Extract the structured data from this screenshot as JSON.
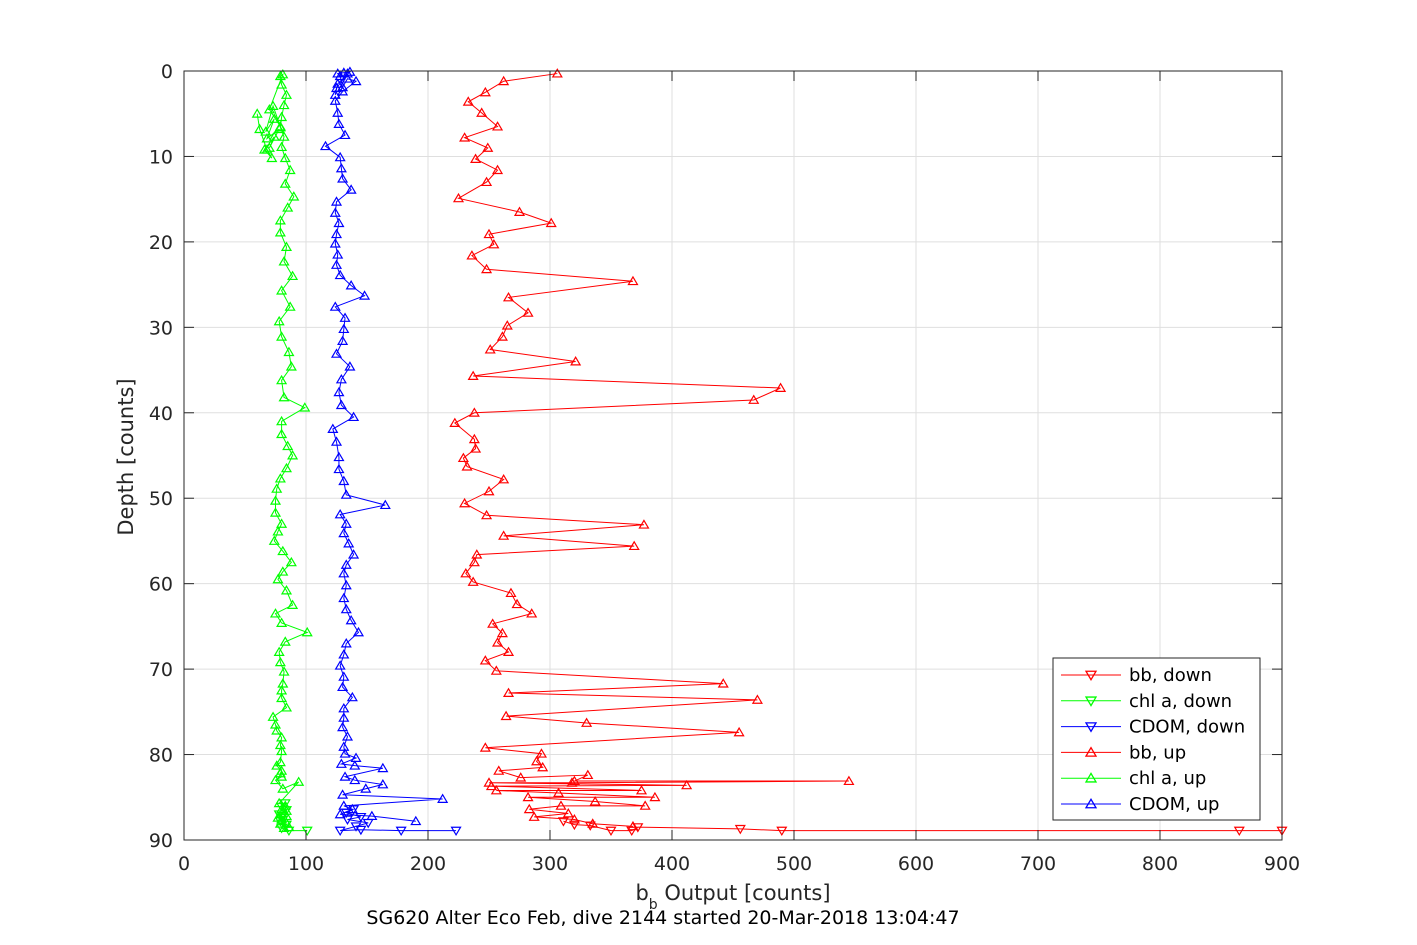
{
  "chart_data": {
    "type": "line",
    "xlabel": {
      "main": "b",
      "sub": "b",
      "rest": " Output [counts]"
    },
    "ylabel": "Depth [counts]",
    "caption": "SG620 Alter Eco Feb, dive 2144 started 20-Mar-2018 13:04:47",
    "xlim": [
      0,
      900
    ],
    "ylim": [
      0,
      90
    ],
    "y_reversed": true,
    "grid": true,
    "legend_position": "bottom-right",
    "xticks": [
      0,
      100,
      200,
      300,
      400,
      500,
      600,
      700,
      800,
      900
    ],
    "yticks": [
      0,
      10,
      20,
      30,
      40,
      50,
      60,
      70,
      80,
      90
    ],
    "series": [
      {
        "name": "bb, down",
        "color": "#ff0000",
        "marker": "triangle-down",
        "x": [
          900,
          865,
          490,
          456,
          372,
          367,
          350,
          333,
          320,
          311
        ],
        "y": [
          88.9,
          88.9,
          88.9,
          88.7,
          88.5,
          88.9,
          88.9,
          88.3,
          88.2,
          87.8
        ]
      },
      {
        "name": "chl a, down",
        "color": "#00ff00",
        "marker": "triangle-down",
        "x": [
          101,
          86,
          80,
          84,
          79,
          82,
          78,
          84,
          80,
          83
        ],
        "y": [
          88.9,
          88.9,
          88.6,
          88.2,
          87.8,
          87.4,
          87.0,
          86.5,
          86.1,
          85.7
        ]
      },
      {
        "name": "CDOM, down",
        "color": "#0000ff",
        "marker": "triangle-down",
        "x": [
          223,
          178,
          145,
          128,
          141,
          151,
          134,
          145,
          133,
          139
        ],
        "y": [
          88.9,
          88.9,
          88.8,
          88.9,
          88.4,
          88.0,
          87.6,
          87.3,
          86.8,
          86.4
        ]
      },
      {
        "name": "bb, up",
        "color": "#ff0000",
        "marker": "triangle-up",
        "x": [
          368,
          335,
          320,
          287,
          315,
          283,
          309,
          378,
          337,
          282,
          386,
          307,
          256,
          375,
          252,
          412,
          250,
          318,
          545,
          320,
          331,
          276,
          258,
          294,
          289,
          293,
          247,
          455,
          330,
          264,
          470,
          266,
          442,
          256,
          247,
          266,
          257,
          261,
          253,
          285,
          273,
          268,
          237,
          231,
          238,
          240,
          369,
          262,
          377,
          248,
          230,
          250,
          262,
          232,
          229,
          239,
          238,
          222,
          238,
          467,
          489,
          237,
          321,
          251,
          261,
          265,
          282,
          266,
          368,
          248,
          236,
          254,
          250,
          301,
          275,
          225,
          248,
          257,
          239,
          249,
          230,
          257,
          244,
          233,
          247,
          262,
          306
        ],
        "y": [
          88.4,
          88.1,
          87.6,
          87.3,
          86.9,
          86.4,
          86.0,
          86.0,
          85.5,
          85.0,
          85.0,
          84.5,
          84.2,
          84.2,
          83.7,
          83.6,
          83.3,
          83.3,
          83.1,
          83.1,
          82.4,
          82.7,
          81.9,
          81.5,
          80.8,
          79.9,
          79.2,
          77.4,
          76.3,
          75.5,
          73.6,
          72.8,
          71.7,
          70.2,
          69.0,
          68.0,
          66.9,
          65.8,
          64.7,
          63.5,
          62.4,
          61.1,
          59.8,
          58.8,
          57.5,
          56.6,
          55.6,
          54.4,
          53.1,
          52.0,
          50.6,
          49.2,
          47.8,
          46.3,
          45.3,
          44.2,
          43.1,
          41.2,
          40.0,
          38.5,
          37.1,
          35.7,
          34.0,
          32.6,
          31.1,
          29.8,
          28.3,
          26.5,
          24.6,
          23.2,
          21.6,
          20.3,
          19.1,
          17.8,
          16.5,
          14.9,
          13.0,
          11.6,
          10.3,
          9.0,
          7.8,
          6.5,
          4.9,
          3.6,
          2.5,
          1.2,
          0.3
        ]
      },
      {
        "name": "chl a, up",
        "color": "#00ff00",
        "marker": "triangle-up",
        "x": [
          82,
          86,
          79,
          84,
          80,
          77,
          84,
          80,
          84,
          80,
          83,
          78,
          94,
          81,
          75,
          80,
          79,
          80,
          76,
          79,
          80,
          79,
          80,
          76,
          75,
          73,
          84,
          80,
          80,
          81,
          82,
          79,
          78,
          83,
          101,
          80,
          75,
          89,
          84,
          77,
          81,
          88,
          81,
          74,
          77,
          80,
          75,
          75,
          76,
          79,
          84,
          89,
          85,
          80,
          80,
          99,
          82,
          80,
          88,
          86,
          80,
          78,
          87,
          80,
          89,
          82,
          84,
          79,
          79,
          85,
          90,
          83,
          87,
          83,
          80,
          82,
          79,
          80,
          82,
          84,
          80,
          79,
          81,
          70,
          79,
          73,
          67,
          74,
          68,
          78,
          70,
          74,
          66,
          72,
          68,
          62,
          60
        ],
        "y": [
          88.6,
          88.5,
          88.1,
          88.0,
          87.6,
          87.4,
          87.2,
          86.9,
          86.6,
          86.4,
          86.0,
          85.7,
          83.2,
          84.0,
          83.0,
          82.6,
          82.2,
          81.9,
          81.3,
          80.9,
          79.6,
          78.9,
          78.0,
          77.2,
          76.5,
          75.6,
          74.5,
          73.4,
          72.5,
          71.7,
          70.3,
          69.2,
          68.0,
          66.8,
          65.7,
          64.6,
          63.5,
          62.5,
          60.8,
          59.5,
          58.6,
          57.5,
          56.2,
          55.0,
          53.9,
          53.0,
          51.7,
          50.3,
          48.9,
          47.7,
          46.5,
          45.0,
          43.9,
          42.5,
          41.0,
          39.4,
          38.2,
          36.2,
          34.6,
          32.9,
          31.1,
          29.3,
          27.6,
          25.7,
          24.0,
          22.3,
          20.6,
          18.9,
          17.5,
          16.0,
          14.7,
          13.2,
          11.6,
          10.2,
          8.9,
          7.7,
          6.6,
          5.4,
          4.0,
          2.8,
          1.6,
          0.6,
          0.4,
          4.5,
          6.5,
          4.1,
          7.1,
          5.6,
          7.9,
          6.8,
          9.0,
          7.7,
          9.2,
          10.2,
          9.2,
          6.8,
          5.0
        ],
        "hidden_points": false
      },
      {
        "name": "CDOM, up",
        "color": "#0000ff",
        "marker": "triangle-up",
        "x": [
          190,
          154,
          128,
          138,
          131,
          212,
          130,
          149,
          163,
          140,
          132,
          163,
          140,
          129,
          141,
          132,
          131,
          134,
          130,
          131,
          131,
          138,
          130,
          131,
          128,
          131,
          133,
          143,
          137,
          133,
          131,
          133,
          131,
          133,
          139,
          135,
          131,
          133,
          128,
          165,
          133,
          131,
          127,
          127,
          125,
          122,
          139,
          129,
          127,
          129,
          136,
          125,
          130,
          131,
          132,
          124,
          148,
          137,
          128,
          125,
          126,
          124,
          125,
          127,
          124,
          125,
          137,
          130,
          129,
          128,
          116,
          132,
          127,
          126,
          124,
          130,
          141,
          134,
          130,
          128,
          126,
          131,
          136,
          126,
          124,
          125,
          134
        ],
        "y": [
          87.8,
          87.2,
          87.0,
          86.4,
          86.0,
          85.2,
          84.7,
          84.0,
          83.5,
          83.0,
          82.6,
          81.6,
          81.3,
          81.1,
          80.4,
          79.9,
          79.1,
          77.9,
          76.8,
          75.7,
          74.6,
          73.3,
          72.1,
          70.9,
          69.6,
          68.3,
          67.0,
          65.7,
          64.3,
          63.0,
          61.7,
          60.2,
          58.8,
          57.8,
          56.6,
          55.3,
          54.1,
          53.0,
          51.9,
          50.8,
          49.6,
          48.0,
          46.6,
          45.2,
          43.4,
          41.9,
          40.5,
          39.1,
          37.6,
          36.1,
          34.6,
          33.1,
          31.6,
          30.2,
          28.9,
          27.6,
          26.3,
          25.1,
          23.9,
          22.7,
          21.5,
          20.2,
          19.1,
          17.8,
          16.6,
          15.3,
          13.9,
          12.6,
          11.4,
          10.1,
          8.8,
          7.5,
          6.2,
          4.9,
          3.5,
          2.4,
          1.2,
          0.9,
          1.9,
          0.6,
          0.3,
          0.2,
          0.1,
          1.5,
          2.8,
          2.0,
          0.3
        ]
      }
    ],
    "legend": [
      "bb, down",
      "chl a, down",
      "CDOM, down",
      "bb, up",
      "chl a, up",
      "CDOM, up"
    ]
  }
}
